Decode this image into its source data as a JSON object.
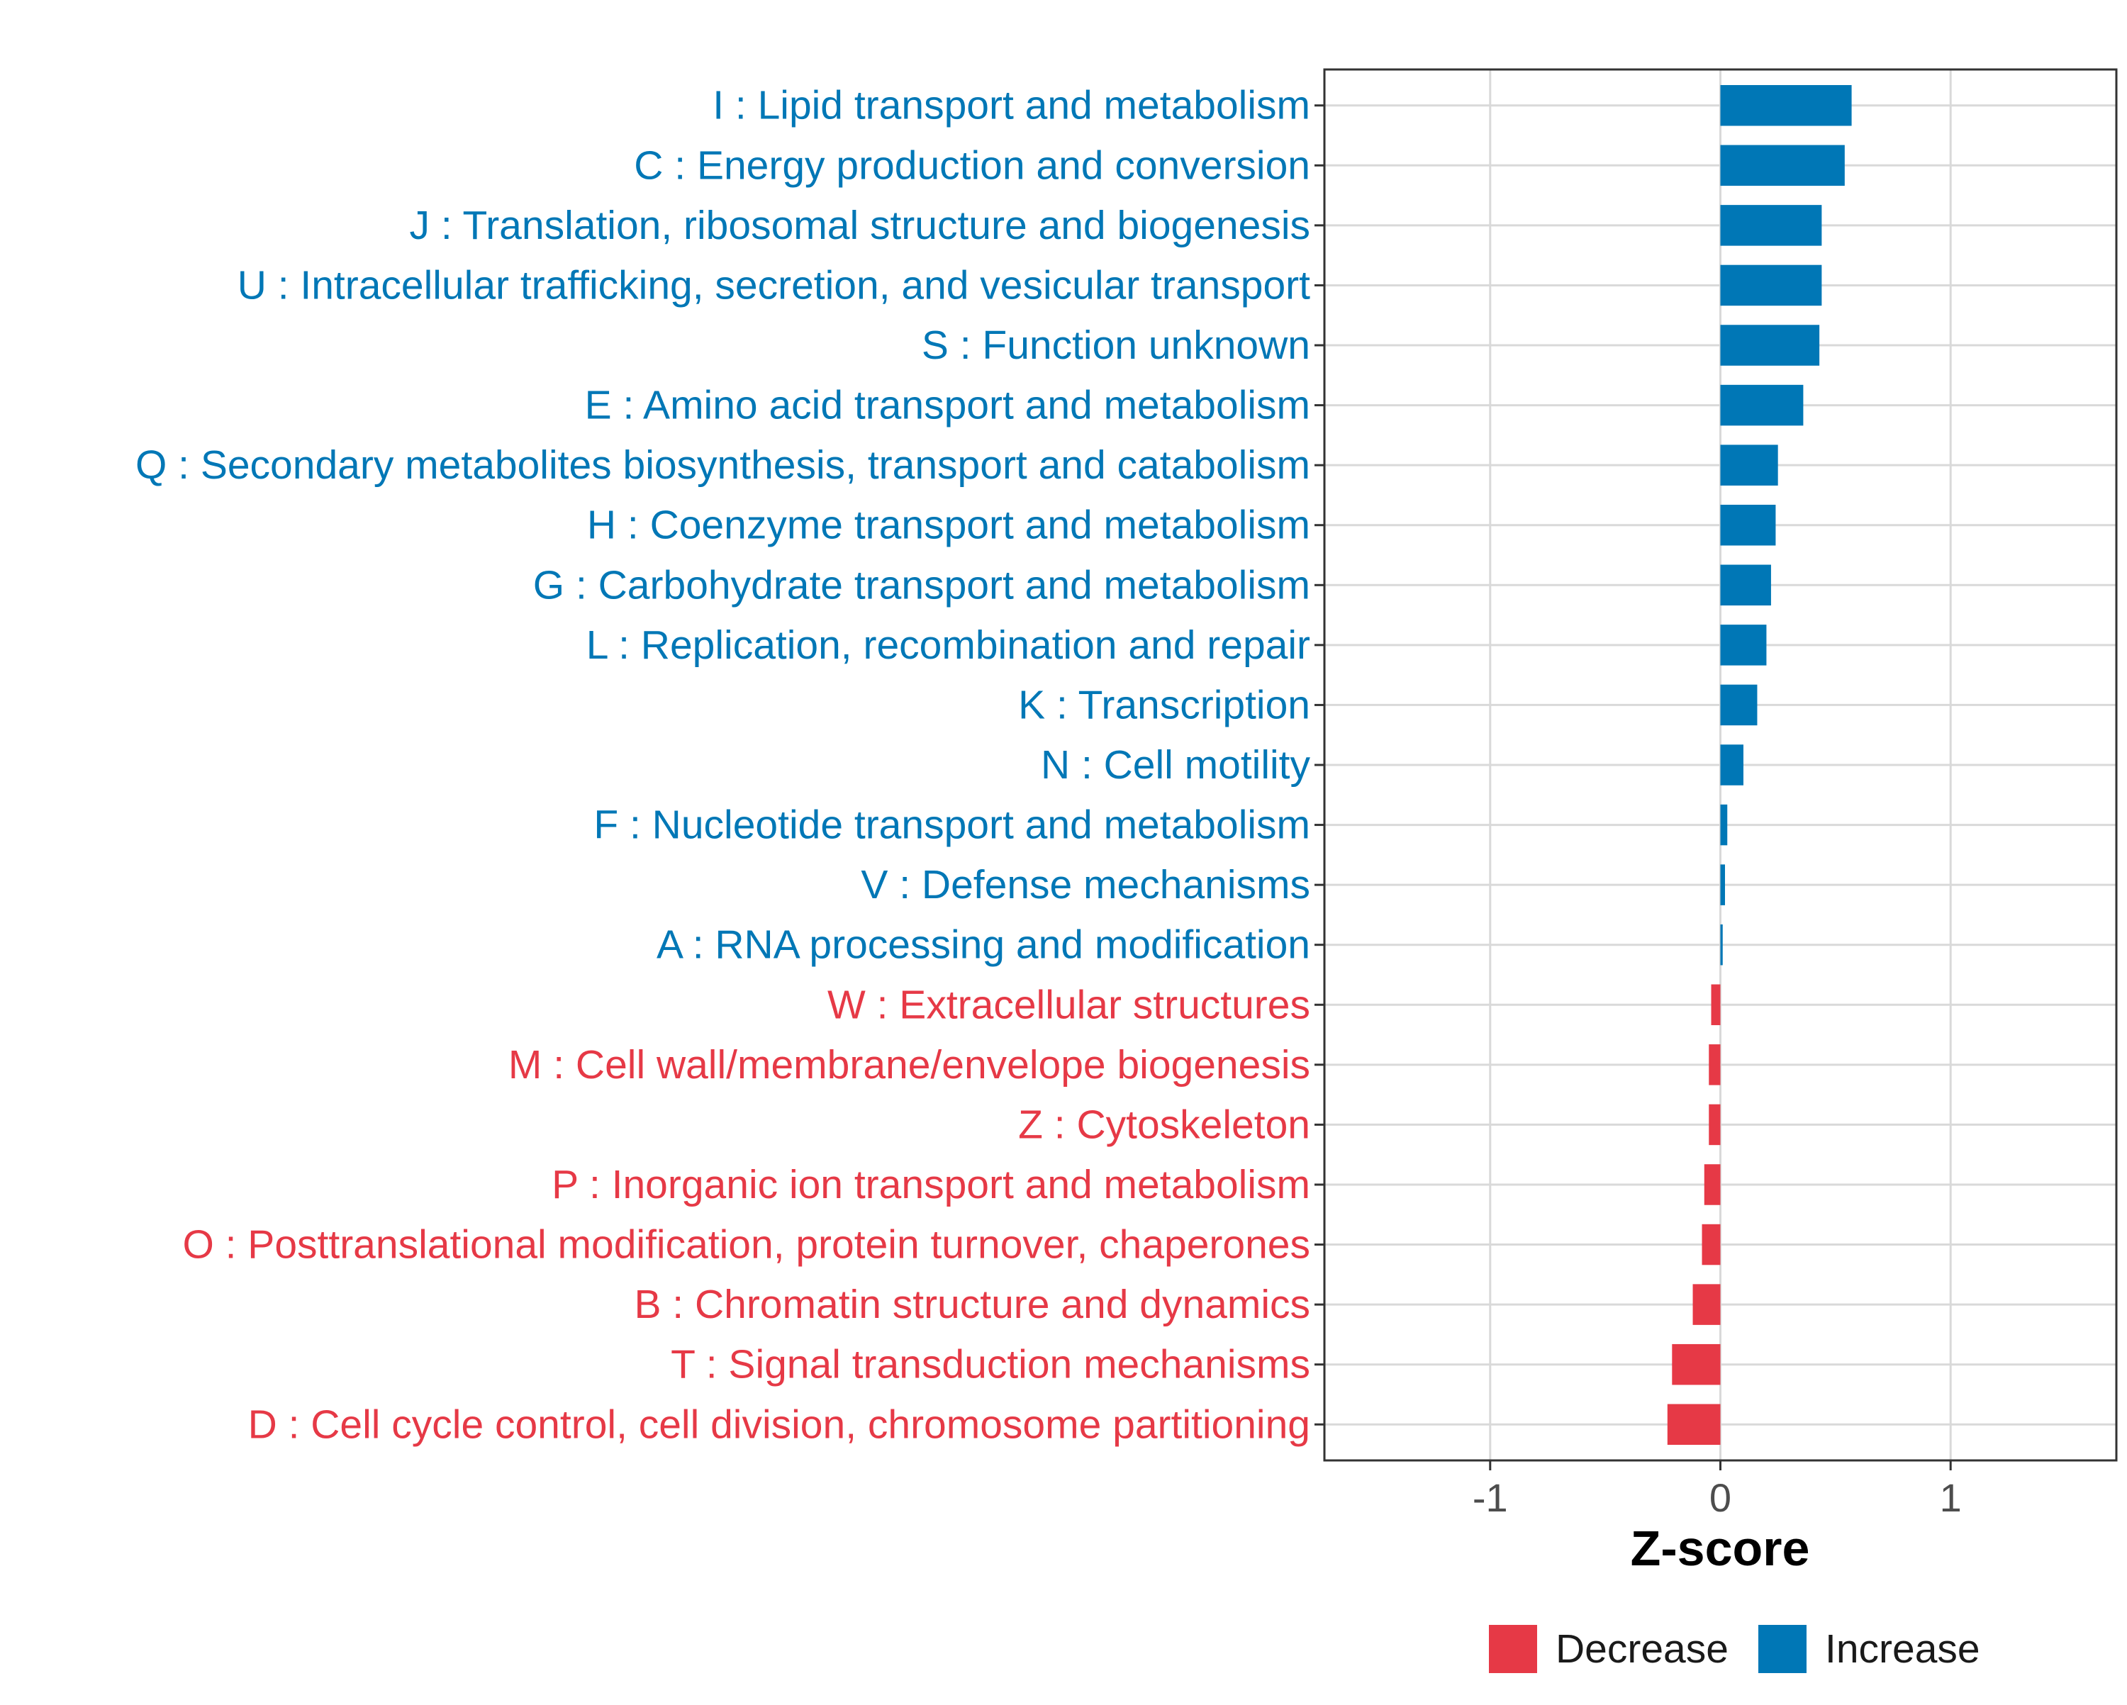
{
  "chart_data": {
    "type": "bar",
    "orientation": "horizontal",
    "title": "",
    "xlabel": "Z-score",
    "ylabel": "",
    "xlim": [
      -1.72,
      1.72
    ],
    "x_ticks": [
      -1,
      0,
      1
    ],
    "x_tick_labels": [
      "-1",
      "0",
      "1"
    ],
    "grid": true,
    "legend_position": "bottom",
    "colors": {
      "Decrease": "#e63946",
      "Increase": "#0077b6"
    },
    "legend": [
      {
        "name": "Decrease",
        "color": "#e63946"
      },
      {
        "name": "Increase",
        "color": "#0077b6"
      }
    ],
    "categories": [
      "I : Lipid transport and metabolism",
      "C : Energy production and conversion",
      "J : Translation, ribosomal structure and biogenesis",
      "U : Intracellular trafficking, secretion, and vesicular transport",
      "S : Function unknown",
      "E : Amino acid transport and metabolism",
      "Q : Secondary metabolites biosynthesis, transport and catabolism",
      "H : Coenzyme transport and metabolism",
      "G : Carbohydrate transport and metabolism",
      "L : Replication, recombination and repair",
      "K : Transcription",
      "N : Cell motility",
      "F : Nucleotide transport and metabolism",
      "V : Defense mechanisms",
      "A : RNA processing and modification",
      "W : Extracellular structures",
      "M : Cell wall/membrane/envelope biogenesis",
      "Z : Cytoskeleton",
      "P : Inorganic ion transport and metabolism",
      "O : Posttranslational modification, protein turnover, chaperones",
      "B : Chromatin structure and dynamics",
      "T : Signal transduction mechanisms",
      "D : Cell cycle control, cell division, chromosome partitioning"
    ],
    "values": [
      0.57,
      0.54,
      0.44,
      0.44,
      0.43,
      0.36,
      0.25,
      0.24,
      0.22,
      0.2,
      0.16,
      0.1,
      0.03,
      0.02,
      0.01,
      -0.04,
      -0.05,
      -0.05,
      -0.07,
      -0.08,
      -0.12,
      -0.21,
      -0.23
    ],
    "groups": [
      "Increase",
      "Increase",
      "Increase",
      "Increase",
      "Increase",
      "Increase",
      "Increase",
      "Increase",
      "Increase",
      "Increase",
      "Increase",
      "Increase",
      "Increase",
      "Increase",
      "Increase",
      "Decrease",
      "Decrease",
      "Decrease",
      "Decrease",
      "Decrease",
      "Decrease",
      "Decrease",
      "Decrease"
    ]
  }
}
